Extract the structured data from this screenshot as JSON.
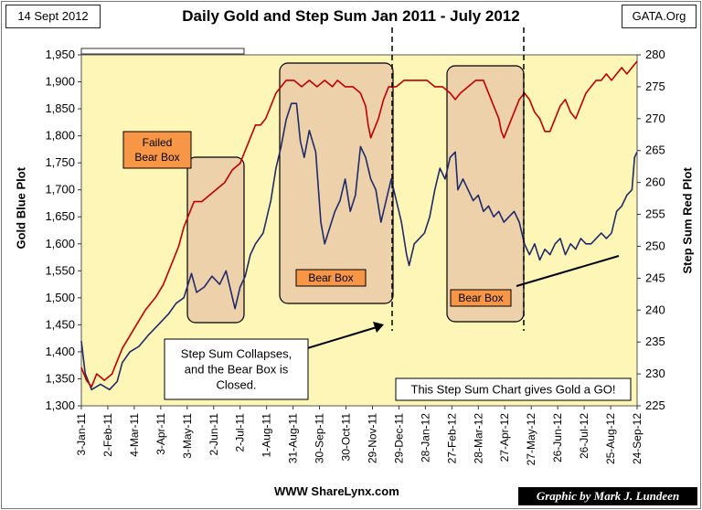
{
  "header": {
    "date": "14 Sept 2012",
    "title": "Daily Gold and Step Sum Jan 2011 - July 2012",
    "source": "GATA.Org"
  },
  "footer": {
    "website": "WWW ShareLynx.com",
    "credit": "Graphic by Mark J. Lundeen"
  },
  "colors": {
    "gold_line": "#1f2a6b",
    "stepsum_line": "#c00000",
    "plot_bg": "#fdf6b6",
    "box_fill": "#eacaa8",
    "label_fill": "#f79646"
  },
  "chart_data": {
    "type": "line",
    "title": "Daily Gold and Step Sum Jan 2011 - July 2012",
    "ylabel": "Gold Blue Plot",
    "y2label": "Step Sum Red Plot",
    "ylim": [
      1300,
      1950
    ],
    "yticks": [
      "1,300",
      "1,350",
      "1,400",
      "1,450",
      "1,500",
      "1,550",
      "1,600",
      "1,650",
      "1,700",
      "1,750",
      "1,800",
      "1,850",
      "1,900",
      "1,950"
    ],
    "y2lim": [
      225,
      280
    ],
    "y2ticks": [
      "225",
      "230",
      "235",
      "240",
      "245",
      "250",
      "255",
      "260",
      "265",
      "270",
      "275",
      "280"
    ],
    "x_dates": [
      "3-Jan-11",
      "2-Feb-11",
      "4-Mar-11",
      "3-Apr-11",
      "3-May-11",
      "2-Jun-11",
      "2-Jul-11",
      "1-Aug-11",
      "31-Aug-11",
      "30-Sep-11",
      "30-Oct-11",
      "29-Nov-11",
      "29-Dec-11",
      "28-Jan-12",
      "27-Feb-12",
      "28-Mar-12",
      "27-Apr-12",
      "27-May-12",
      "26-Jun-12",
      "26-Jul-12",
      "25-Aug-12",
      "24-Sep-12"
    ],
    "series": [
      {
        "name": "Gold",
        "axis": "left",
        "color": "#1f2a6b",
        "points": [
          [
            0,
            1420
          ],
          [
            3,
            1360
          ],
          [
            8,
            1330
          ],
          [
            15,
            1340
          ],
          [
            22,
            1330
          ],
          [
            28,
            1345
          ],
          [
            32,
            1380
          ],
          [
            38,
            1400
          ],
          [
            45,
            1410
          ],
          [
            52,
            1430
          ],
          [
            60,
            1450
          ],
          [
            68,
            1470
          ],
          [
            74,
            1490
          ],
          [
            80,
            1500
          ],
          [
            86,
            1545
          ],
          [
            90,
            1510
          ],
          [
            96,
            1520
          ],
          [
            102,
            1540
          ],
          [
            108,
            1525
          ],
          [
            113,
            1550
          ],
          [
            117,
            1510
          ],
          [
            120,
            1480
          ],
          [
            124,
            1520
          ],
          [
            128,
            1540
          ],
          [
            132,
            1580
          ],
          [
            136,
            1600
          ],
          [
            142,
            1620
          ],
          [
            148,
            1680
          ],
          [
            152,
            1740
          ],
          [
            156,
            1780
          ],
          [
            160,
            1830
          ],
          [
            164,
            1860
          ],
          [
            168,
            1860
          ],
          [
            171,
            1790
          ],
          [
            174,
            1760
          ],
          [
            178,
            1810
          ],
          [
            183,
            1770
          ],
          [
            187,
            1640
          ],
          [
            190,
            1600
          ],
          [
            194,
            1630
          ],
          [
            198,
            1660
          ],
          [
            202,
            1680
          ],
          [
            206,
            1720
          ],
          [
            210,
            1660
          ],
          [
            214,
            1690
          ],
          [
            218,
            1780
          ],
          [
            222,
            1760
          ],
          [
            226,
            1720
          ],
          [
            230,
            1700
          ],
          [
            234,
            1640
          ],
          [
            238,
            1680
          ],
          [
            242,
            1720
          ],
          [
            246,
            1680
          ],
          [
            250,
            1640
          ],
          [
            254,
            1580
          ],
          [
            256,
            1560
          ],
          [
            260,
            1600
          ],
          [
            264,
            1610
          ],
          [
            268,
            1620
          ],
          [
            272,
            1650
          ],
          [
            276,
            1700
          ],
          [
            280,
            1740
          ],
          [
            284,
            1720
          ],
          [
            288,
            1760
          ],
          [
            292,
            1770
          ],
          [
            294,
            1700
          ],
          [
            298,
            1720
          ],
          [
            302,
            1700
          ],
          [
            306,
            1680
          ],
          [
            310,
            1690
          ],
          [
            314,
            1660
          ],
          [
            318,
            1670
          ],
          [
            322,
            1650
          ],
          [
            326,
            1660
          ],
          [
            330,
            1640
          ],
          [
            334,
            1650
          ],
          [
            338,
            1660
          ],
          [
            342,
            1640
          ],
          [
            346,
            1600
          ],
          [
            350,
            1580
          ],
          [
            354,
            1600
          ],
          [
            358,
            1570
          ],
          [
            362,
            1590
          ],
          [
            366,
            1580
          ],
          [
            370,
            1600
          ],
          [
            374,
            1610
          ],
          [
            378,
            1580
          ],
          [
            382,
            1600
          ],
          [
            386,
            1590
          ],
          [
            390,
            1610
          ],
          [
            394,
            1600
          ],
          [
            398,
            1600
          ],
          [
            402,
            1610
          ],
          [
            406,
            1620
          ],
          [
            410,
            1610
          ],
          [
            414,
            1620
          ],
          [
            418,
            1660
          ],
          [
            422,
            1670
          ],
          [
            426,
            1690
          ],
          [
            430,
            1700
          ],
          [
            432,
            1760
          ],
          [
            434,
            1770
          ]
        ]
      },
      {
        "name": "Step Sum",
        "axis": "right",
        "color": "#c00000",
        "points": [
          [
            0,
            231
          ],
          [
            4,
            229
          ],
          [
            8,
            228
          ],
          [
            12,
            230
          ],
          [
            18,
            229
          ],
          [
            24,
            230
          ],
          [
            28,
            232
          ],
          [
            32,
            234
          ],
          [
            38,
            236
          ],
          [
            44,
            238
          ],
          [
            50,
            240
          ],
          [
            58,
            242
          ],
          [
            64,
            244
          ],
          [
            70,
            247
          ],
          [
            76,
            250
          ],
          [
            80,
            253
          ],
          [
            84,
            255
          ],
          [
            88,
            257
          ],
          [
            94,
            257
          ],
          [
            100,
            258
          ],
          [
            106,
            259
          ],
          [
            112,
            260
          ],
          [
            118,
            262
          ],
          [
            124,
            263
          ],
          [
            128,
            265
          ],
          [
            132,
            267
          ],
          [
            136,
            269
          ],
          [
            140,
            269
          ],
          [
            144,
            270
          ],
          [
            148,
            272
          ],
          [
            152,
            274
          ],
          [
            156,
            275
          ],
          [
            160,
            276
          ],
          [
            166,
            276
          ],
          [
            172,
            275
          ],
          [
            178,
            276
          ],
          [
            184,
            275
          ],
          [
            190,
            276
          ],
          [
            196,
            275
          ],
          [
            200,
            276
          ],
          [
            206,
            275
          ],
          [
            212,
            275
          ],
          [
            218,
            274
          ],
          [
            222,
            272
          ],
          [
            224,
            269
          ],
          [
            226,
            267
          ],
          [
            228,
            268
          ],
          [
            232,
            270
          ],
          [
            236,
            273
          ],
          [
            240,
            275
          ],
          [
            246,
            275
          ],
          [
            252,
            276
          ],
          [
            258,
            276
          ],
          [
            264,
            276
          ],
          [
            270,
            276
          ],
          [
            276,
            275
          ],
          [
            282,
            275
          ],
          [
            288,
            274
          ],
          [
            292,
            273
          ],
          [
            296,
            274
          ],
          [
            302,
            275
          ],
          [
            308,
            276
          ],
          [
            314,
            276
          ],
          [
            318,
            274
          ],
          [
            322,
            272
          ],
          [
            326,
            270
          ],
          [
            328,
            268
          ],
          [
            330,
            267
          ],
          [
            334,
            269
          ],
          [
            338,
            271
          ],
          [
            342,
            273
          ],
          [
            346,
            274
          ],
          [
            350,
            273
          ],
          [
            354,
            271
          ],
          [
            358,
            270
          ],
          [
            362,
            268
          ],
          [
            366,
            268
          ],
          [
            370,
            270
          ],
          [
            374,
            272
          ],
          [
            378,
            273
          ],
          [
            382,
            271
          ],
          [
            386,
            270
          ],
          [
            390,
            272
          ],
          [
            394,
            274
          ],
          [
            398,
            275
          ],
          [
            402,
            276
          ],
          [
            406,
            276
          ],
          [
            410,
            277
          ],
          [
            414,
            276
          ],
          [
            418,
            277
          ],
          [
            422,
            278
          ],
          [
            426,
            277
          ],
          [
            430,
            278
          ],
          [
            434,
            279
          ]
        ]
      }
    ],
    "annotations": {
      "failed_bear_box": "Failed\nBear Box",
      "bear_box_1": "Bear Box",
      "bear_box_2": "Bear Box",
      "callout": "Step Sum Collapses,\nand the Bear Box is\nClosed.",
      "note": "This Step Sum Chart gives Gold a GO!"
    }
  }
}
